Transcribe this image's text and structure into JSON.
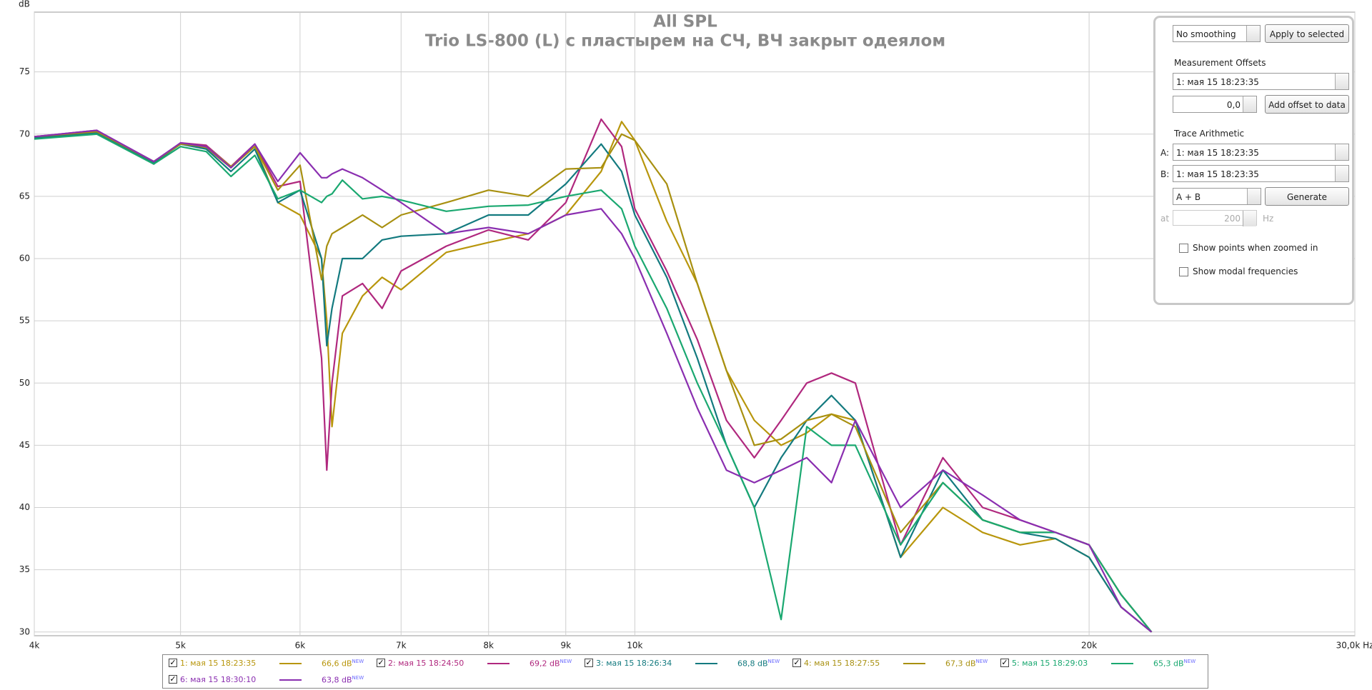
{
  "chart_data": {
    "type": "line",
    "title": "All SPL",
    "subtitle": "Trio LS-800 (L) с пластырем на СЧ, ВЧ закрыт одеялом",
    "y_label": "dB",
    "xscale": "log",
    "grid": true,
    "xlim": [
      4000,
      30000
    ],
    "ylim": [
      29.7,
      79.8
    ],
    "xticks": [
      {
        "value": 4000,
        "label": "4k"
      },
      {
        "value": 5000,
        "label": "5k"
      },
      {
        "value": 6000,
        "label": "6k"
      },
      {
        "value": 7000,
        "label": "7k"
      },
      {
        "value": 8000,
        "label": "8k"
      },
      {
        "value": 9000,
        "label": "9k"
      },
      {
        "value": 10000,
        "label": "10k"
      },
      {
        "value": 20000,
        "label": "20k"
      },
      {
        "value": 30000,
        "label": "30,0k Hz"
      }
    ],
    "yticks": [
      30,
      35,
      40,
      45,
      50,
      55,
      60,
      65,
      70,
      75
    ],
    "x": [
      4000,
      4400,
      4800,
      5000,
      5200,
      5400,
      5600,
      5800,
      6000,
      6200,
      6250,
      6300,
      6400,
      6600,
      6800,
      7000,
      7500,
      8000,
      8500,
      9000,
      9500,
      9800,
      10000,
      10500,
      11000,
      11500,
      12000,
      12500,
      13000,
      13500,
      14000,
      15000,
      16000,
      17000,
      18000,
      19000,
      20000,
      21000,
      22000
    ],
    "series": [
      {
        "name": "1: мая 15 18:23:35",
        "color": "#b8960c",
        "legend_value": "66,6 dB",
        "legend_tag": "NEW",
        "values": [
          69.8,
          70.2,
          67.8,
          69.2,
          68.9,
          67.3,
          69,
          64.5,
          63.5,
          60,
          55,
          46.5,
          54,
          57,
          58.5,
          57.5,
          60.5,
          61.3,
          62,
          63.5,
          67,
          71,
          69.5,
          63,
          58,
          51,
          47,
          45,
          46,
          47.5,
          47,
          36,
          40,
          38,
          37,
          37.5,
          36,
          32,
          30
        ]
      },
      {
        "name": "2: мая 15 18:24:50",
        "color": "#b0287e",
        "legend_value": "69,2 dB",
        "legend_tag": "NEW",
        "values": [
          69.8,
          70.3,
          67.6,
          69.3,
          69.1,
          67.4,
          69.2,
          65.8,
          66.2,
          52,
          43,
          50,
          57,
          58,
          56,
          59,
          61,
          62.3,
          61.5,
          64.5,
          71.2,
          69,
          64,
          59,
          53.5,
          47,
          44,
          47,
          50,
          50.8,
          50,
          37,
          44,
          40,
          39,
          38,
          37,
          33,
          30
        ]
      },
      {
        "name": "3: мая 15 18:26:34",
        "color": "#137a7f",
        "legend_value": "68,8 dB",
        "legend_tag": "NEW",
        "values": [
          69.7,
          70.1,
          67.7,
          69.2,
          68.8,
          67,
          68.8,
          64.5,
          65.5,
          60,
          53,
          56,
          60,
          60,
          61.5,
          61.8,
          62,
          63.5,
          63.5,
          66,
          69.2,
          67,
          63.5,
          58.5,
          52,
          45,
          40,
          44,
          47,
          49,
          47,
          36,
          43,
          39,
          38,
          37.5,
          36,
          32,
          30
        ]
      },
      {
        "name": "4: мая 15 18:27:55",
        "color": "#a89010",
        "legend_value": "67,3 dB",
        "legend_tag": "NEW",
        "values": [
          69.8,
          70.2,
          67.8,
          69.2,
          69,
          67.4,
          69,
          65.5,
          67.5,
          58.3,
          61,
          62,
          62.5,
          63.5,
          62.5,
          63.5,
          64.5,
          65.5,
          65,
          67.2,
          67.3,
          70,
          69.5,
          66,
          58,
          51,
          45,
          45.5,
          47,
          47.5,
          46.5,
          38,
          42,
          39,
          38,
          38,
          37,
          33,
          30
        ]
      },
      {
        "name": "5: мая 15 18:29:03",
        "color": "#1aa870",
        "legend_value": "65,3 dB",
        "legend_tag": "NEW",
        "values": [
          69.6,
          70,
          67.6,
          69,
          68.6,
          66.6,
          68.3,
          64.8,
          65.5,
          64.5,
          65,
          65.2,
          66.3,
          64.8,
          65,
          64.7,
          63.8,
          64.2,
          64.3,
          65,
          65.5,
          64,
          61,
          56,
          50,
          45,
          40,
          31,
          46.5,
          45,
          45,
          37,
          42,
          39,
          38,
          38,
          37,
          33,
          30
        ]
      },
      {
        "name": "6: мая 15 18:30:10",
        "color": "#8a2eb0",
        "legend_value": "63,8 dB",
        "legend_tag": "NEW",
        "values": [
          69.8,
          70.3,
          67.8,
          69.3,
          69,
          67.3,
          69.2,
          66.2,
          68.5,
          66.5,
          66.5,
          66.8,
          67.2,
          66.5,
          65.5,
          64.5,
          62,
          62.5,
          62,
          63.5,
          64,
          62,
          60,
          54,
          48,
          43,
          42,
          43,
          44,
          42,
          47,
          40,
          43,
          41,
          39,
          38,
          37,
          32,
          30
        ]
      }
    ]
  },
  "panel": {
    "smoothing": "No smoothing",
    "apply": "Apply to selected",
    "offsets_title": "Measurement Offsets",
    "offset_measurement": "1: мая 15 18:23:35",
    "offset_value": "0,0",
    "add_offset": "Add offset to data",
    "arith_title": "Trace Arithmetic",
    "a_label": "A:",
    "a_value": "1: мая 15 18:23:35",
    "b_label": "B:",
    "b_value": "1: мая 15 18:23:35",
    "operation": "A + B",
    "generate": "Generate",
    "at_label": "at",
    "at_value": "200",
    "at_unit": "Hz",
    "show_points": "Show points when zoomed in",
    "show_modal": "Show modal frequencies"
  }
}
